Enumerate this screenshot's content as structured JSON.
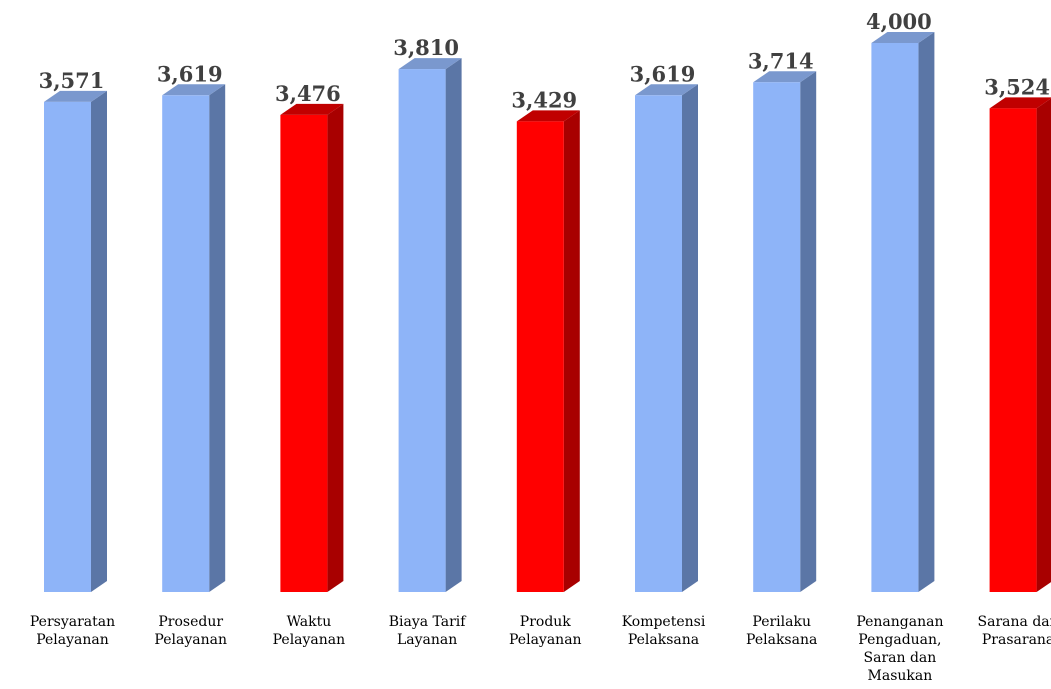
{
  "chart_data": {
    "type": "bar",
    "style": "3d-column",
    "title": "",
    "xlabel": "",
    "ylabel": "",
    "ylim": [
      0,
      4
    ],
    "grid": false,
    "legend": "none",
    "categories": [
      "Persyaratan Pelayanan",
      "Prosedur Pelayanan",
      "Waktu Pelayanan",
      "Biaya Tarif Layanan",
      "Produk Pelayanan",
      "Kompetensi Pelaksana",
      "Perilaku Pelaksana",
      "Penanganan Pengaduan, Saran dan Masukan",
      "Sarana dan Prasarana"
    ],
    "category_lines": [
      [
        "Persyaratan",
        "Pelayanan"
      ],
      [
        "Prosedur",
        "Pelayanan"
      ],
      [
        "Waktu",
        "Pelayanan"
      ],
      [
        "Biaya Tarif",
        "Layanan"
      ],
      [
        "Produk",
        "Pelayanan"
      ],
      [
        "Kompetensi",
        "Pelaksana"
      ],
      [
        "Perilaku",
        "Pelaksana"
      ],
      [
        "Penanganan",
        "Pengaduan,",
        "Saran dan",
        "Masukan"
      ],
      [
        "Sarana dan",
        "Prasarana"
      ]
    ],
    "values": [
      3.571,
      3.619,
      3.476,
      3.81,
      3.429,
      3.619,
      3.714,
      4.0,
      3.524
    ],
    "value_labels": [
      "3,571",
      "3,619",
      "3,476",
      "3,810",
      "3,429",
      "3,619",
      "3,714",
      "4,000",
      "3,524"
    ],
    "bar_colors": [
      "blue",
      "blue",
      "red",
      "blue",
      "red",
      "blue",
      "blue",
      "blue",
      "red"
    ]
  },
  "colors": {
    "blue": {
      "front": "#8EB4F8",
      "side": "#5B76A6",
      "top": "#7A98CE"
    },
    "red": {
      "front": "#FF0000",
      "side": "#A80000",
      "top": "#C00000"
    }
  }
}
